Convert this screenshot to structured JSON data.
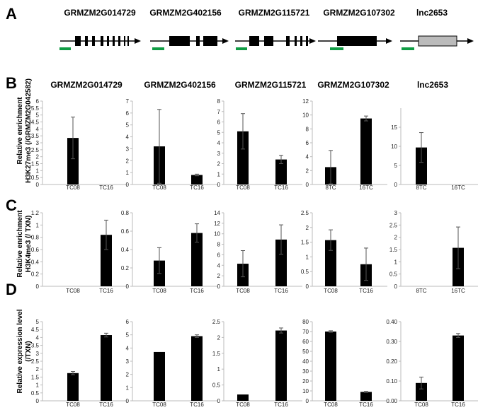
{
  "panels": {
    "A": "A",
    "B": "B",
    "C": "C",
    "D": "D"
  },
  "genes": [
    "GRMZM2G014729",
    "GRMZM2G402156",
    "GRMZM2G115721",
    "GRMZM2G107302",
    "lnc2653"
  ],
  "panel_b": {
    "ylabel_1": "Relative enrichment",
    "ylabel_2": "H3K27me3 (/GRMZM2G042582)"
  },
  "panel_c": {
    "ylabel_1": "Relative enrichment",
    "ylabel_2": "H3K4me3 (/ TXN)"
  },
  "panel_d": {
    "ylabel_1": "Relative expression level",
    "ylabel_2": "(/TXN)"
  },
  "colors": {
    "bar": "#000000",
    "feature": "#000000",
    "lnc_feature": "#bbbbbb",
    "primer": "#109c44"
  },
  "chart_data": [
    {
      "panel": "B",
      "type": "bar",
      "title": "GRMZM2G014729",
      "categories": [
        "TC08",
        "TC16"
      ],
      "values": [
        3.35,
        0
      ],
      "errors": [
        1.5,
        0
      ],
      "ylim": [
        0,
        6
      ],
      "ticks": [
        "0",
        "0.5",
        "1",
        "1.5",
        "2",
        "2.5",
        "3",
        "3.5",
        "4",
        "4.5",
        "5",
        "5.5",
        "6"
      ]
    },
    {
      "panel": "B",
      "type": "bar",
      "title": "GRMZM2G402156",
      "categories": [
        "TC08",
        "TC16"
      ],
      "values": [
        3.2,
        0.8
      ],
      "errors": [
        3.1,
        0.07
      ],
      "ylim": [
        0,
        7
      ],
      "ticks": [
        "0",
        "1",
        "2",
        "3",
        "4",
        "5",
        "6",
        "7"
      ]
    },
    {
      "panel": "B",
      "type": "bar",
      "title": "GRMZM2G115721",
      "categories": [
        "TC08",
        "TC16"
      ],
      "values": [
        5.1,
        2.4
      ],
      "errors": [
        1.7,
        0.4
      ],
      "ylim": [
        0,
        8
      ],
      "ticks": [
        "0",
        "1",
        "2",
        "3",
        "4",
        "5",
        "6",
        "7",
        "8"
      ]
    },
    {
      "panel": "B",
      "type": "bar",
      "title": "GRMZM2G107302",
      "categories": [
        "8TC",
        "16TC"
      ],
      "values": [
        2.5,
        9.5
      ],
      "errors": [
        2.4,
        0.35
      ],
      "ylim": [
        0,
        12
      ],
      "ticks": [
        "0",
        "2",
        "4",
        "6",
        "8",
        "10",
        "12"
      ]
    },
    {
      "panel": "B",
      "type": "bar",
      "title": "lnc2653",
      "categories": [
        "8TC",
        "16TC"
      ],
      "values": [
        9.7,
        0
      ],
      "errors": [
        3.9,
        0
      ],
      "ylim": [
        0,
        20
      ],
      "ticks": [
        "0",
        "5",
        "10",
        "15"
      ]
    },
    {
      "panel": "C",
      "type": "bar",
      "categories": [
        "TC08",
        "TC16"
      ],
      "values": [
        0,
        0.84
      ],
      "errors": [
        0,
        0.24
      ],
      "ylim": [
        0,
        1.2
      ],
      "ticks": [
        "0",
        "0.2",
        "0.4",
        "0.6",
        "0.8",
        "1",
        "1.2"
      ]
    },
    {
      "panel": "C",
      "type": "bar",
      "categories": [
        "TC08",
        "TC16"
      ],
      "values": [
        0.28,
        0.58
      ],
      "errors": [
        0.14,
        0.1
      ],
      "ylim": [
        0,
        0.8
      ],
      "ticks": [
        "0",
        "0.2",
        "0.4",
        "0.6",
        "0.8"
      ]
    },
    {
      "panel": "C",
      "type": "bar",
      "categories": [
        "TC08",
        "TC16"
      ],
      "values": [
        4.3,
        8.9
      ],
      "errors": [
        2.5,
        2.8
      ],
      "ylim": [
        0,
        14
      ],
      "ticks": [
        "0",
        "2",
        "4",
        "6",
        "8",
        "10",
        "12",
        "14"
      ]
    },
    {
      "panel": "C",
      "type": "bar",
      "categories": [
        "TC08",
        "TC16"
      ],
      "values": [
        1.57,
        0.75
      ],
      "errors": [
        0.35,
        0.55
      ],
      "ylim": [
        0,
        2.5
      ],
      "ticks": [
        "0",
        "0.5",
        "1",
        "1.5",
        "2",
        "2.5"
      ]
    },
    {
      "panel": "C",
      "type": "bar",
      "categories": [
        "8TC",
        "16TC"
      ],
      "values": [
        0,
        1.57
      ],
      "errors": [
        0,
        0.85
      ],
      "ylim": [
        0,
        3
      ],
      "ticks": [
        "0",
        "0.5",
        "1",
        "1.5",
        "2",
        "2.5",
        "3"
      ]
    },
    {
      "panel": "D",
      "type": "bar",
      "categories": [
        "TC08",
        "TC16"
      ],
      "values": [
        1.75,
        4.15
      ],
      "errors": [
        0.1,
        0.12
      ],
      "ylim": [
        0,
        5
      ],
      "ticks": [
        "0",
        "0.5",
        "1",
        "1.5",
        "2",
        "2.5",
        "3",
        "3.5",
        "4",
        "4.5",
        "5"
      ]
    },
    {
      "panel": "D",
      "type": "bar",
      "categories": [
        "TC08",
        "TC16"
      ],
      "values": [
        3.7,
        4.9
      ],
      "errors": [
        0,
        0.1
      ],
      "ylim": [
        0,
        6
      ],
      "ticks": [
        "0",
        "1",
        "2",
        "3",
        "4",
        "5",
        "6"
      ]
    },
    {
      "panel": "D",
      "type": "bar",
      "categories": [
        "TC08",
        "TC16"
      ],
      "values": [
        0.2,
        2.22
      ],
      "errors": [
        0,
        0.08
      ],
      "ylim": [
        0,
        2.5
      ],
      "ticks": [
        "0",
        "0.5",
        "1",
        "1.5",
        "2",
        "2.5"
      ]
    },
    {
      "panel": "D",
      "type": "bar",
      "categories": [
        "TC08",
        "TC16"
      ],
      "values": [
        70,
        9
      ],
      "errors": [
        0.8,
        0.5
      ],
      "ylim": [
        0,
        80
      ],
      "ticks": [
        "0",
        "10",
        "20",
        "30",
        "40",
        "50",
        "60",
        "70",
        "80"
      ]
    },
    {
      "panel": "D",
      "type": "bar",
      "categories": [
        "TC08",
        "TC16"
      ],
      "values": [
        0.09,
        0.33
      ],
      "errors": [
        0.03,
        0.01
      ],
      "ylim": [
        0,
        0.4
      ],
      "ticks": [
        "0.00",
        "0.10",
        "0.20",
        "0.30",
        "0.40"
      ]
    }
  ]
}
